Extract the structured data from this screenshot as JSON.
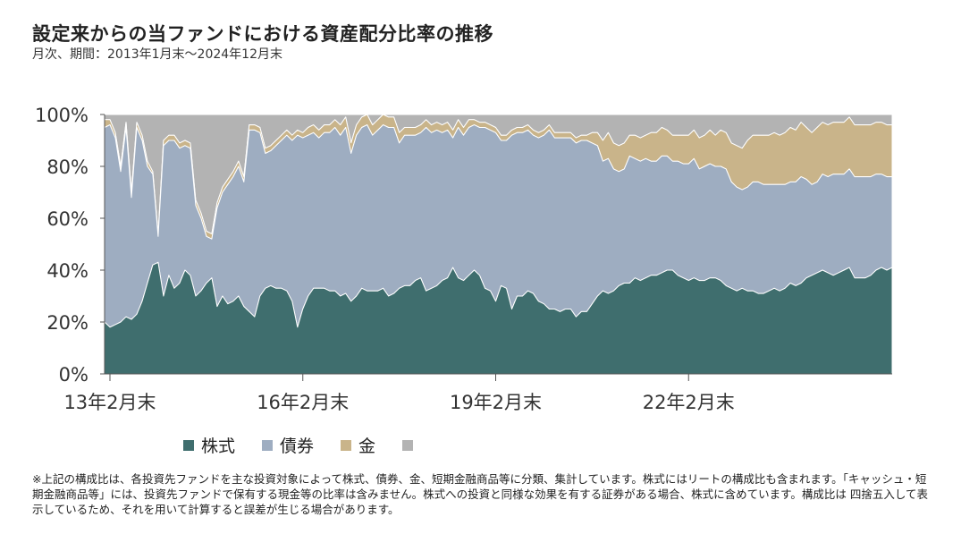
{
  "header": {
    "title": "設定来からの当ファンドにおける資産配分比率の推移",
    "subtitle": "月次、期間：2013年1月末～2024年12月末"
  },
  "footnote": "※上記の構成比は、各投資先ファンドを主な投資対象によって株式、債券、金、短期金融商品等に分類、集計しています。株式にはリートの構成比も含まれます。「キャッシュ・短期金融商品等」には、投資先ファンドで保有する現金等の比率は含みません。株式への投資と同様な効果を有する証券がある場合、株式に含めています。構成比は 四捨五入して表示しているため、それを用いて計算すると誤差が生じる場合があります。",
  "chart_data": {
    "type": "area",
    "stacked": true,
    "x_start": "2013-01",
    "x_end": "2024-12",
    "x_tick_labels": [
      "13年2月末",
      "16年2月末",
      "19年2月末",
      "22年2月末"
    ],
    "ylim": [
      0,
      100
    ],
    "y_tick_labels": [
      "0%",
      "20%",
      "40%",
      "60%",
      "80%",
      "100%"
    ],
    "colors": [
      "#3f6e6e",
      "#9eadc1",
      "#c9b48a",
      "#b3b3b3"
    ],
    "series": [
      {
        "name": "株式",
        "values": [
          20,
          18,
          19,
          20,
          22,
          21,
          23,
          28,
          35,
          42,
          43,
          30,
          38,
          33,
          35,
          40,
          38,
          30,
          32,
          35,
          37,
          26,
          30,
          27,
          28,
          30,
          26,
          24,
          22,
          30,
          33,
          34,
          33,
          33,
          32,
          28,
          18,
          25,
          30,
          33,
          33,
          33,
          32,
          32,
          30,
          31,
          28,
          30,
          33,
          32,
          32,
          32,
          33,
          30,
          31,
          33,
          34,
          34,
          36,
          37,
          32,
          33,
          34,
          36,
          37,
          41,
          37,
          36,
          38,
          40,
          38,
          33,
          32,
          28,
          34,
          33,
          25,
          30,
          30,
          32,
          31,
          28,
          27,
          25,
          25,
          24,
          25,
          25,
          22,
          24,
          24,
          27,
          30,
          32,
          31,
          32,
          34,
          35,
          35,
          37,
          36,
          37,
          38,
          38,
          39,
          40,
          40,
          38,
          37,
          36,
          37,
          36,
          36,
          37,
          37,
          36,
          34,
          33,
          32,
          33,
          32,
          32,
          31,
          31,
          32,
          33,
          32,
          33,
          35,
          34,
          35,
          37,
          38,
          39,
          40,
          39,
          38,
          39,
          40,
          41,
          37,
          37,
          37,
          38,
          40,
          41,
          40,
          41
        ]
      },
      {
        "name": "債券",
        "values": [
          75,
          78,
          72,
          58,
          73,
          47,
          72,
          62,
          45,
          35,
          10,
          58,
          52,
          57,
          52,
          48,
          49,
          35,
          28,
          18,
          15,
          38,
          40,
          46,
          48,
          50,
          48,
          70,
          72,
          63,
          52,
          52,
          55,
          57,
          60,
          62,
          74,
          66,
          62,
          60,
          58,
          60,
          61,
          63,
          62,
          64,
          57,
          62,
          62,
          64,
          60,
          62,
          63,
          65,
          64,
          56,
          58,
          58,
          56,
          56,
          63,
          60,
          60,
          57,
          57,
          50,
          58,
          56,
          57,
          56,
          57,
          62,
          62,
          65,
          56,
          57,
          67,
          63,
          63,
          62,
          61,
          63,
          65,
          69,
          66,
          67,
          66,
          66,
          67,
          66,
          66,
          62,
          58,
          50,
          52,
          47,
          44,
          44,
          49,
          46,
          46,
          46,
          44,
          44,
          45,
          44,
          42,
          44,
          44,
          45,
          46,
          43,
          44,
          44,
          43,
          44,
          45,
          41,
          40,
          38,
          40,
          42,
          43,
          42,
          41,
          40,
          41,
          40,
          39,
          40,
          41,
          38,
          35,
          35,
          37,
          37,
          39,
          38,
          37,
          38,
          39,
          39,
          39,
          38,
          37,
          36,
          36,
          35
        ]
      },
      {
        "name": "金",
        "values": [
          3,
          2,
          2,
          2,
          2,
          2,
          2,
          2,
          2,
          1,
          1,
          2,
          2,
          2,
          2,
          2,
          2,
          2,
          2,
          2,
          2,
          2,
          2,
          2,
          2,
          2,
          2,
          2,
          2,
          2,
          2,
          2,
          2,
          2,
          2,
          2,
          2,
          2,
          3,
          3,
          3,
          3,
          3,
          3,
          4,
          4,
          4,
          4,
          4,
          4,
          4,
          4,
          4,
          4,
          4,
          4,
          3,
          3,
          3,
          3,
          3,
          3,
          3,
          3,
          3,
          3,
          3,
          3,
          3,
          2,
          2,
          2,
          2,
          2,
          2,
          2,
          2,
          2,
          2,
          2,
          2,
          2,
          2,
          2,
          2,
          2,
          2,
          2,
          2,
          2,
          2,
          4,
          5,
          8,
          10,
          10,
          10,
          10,
          8,
          9,
          9,
          9,
          11,
          11,
          11,
          10,
          10,
          10,
          11,
          11,
          11,
          12,
          12,
          13,
          12,
          14,
          14,
          15,
          16,
          16,
          18,
          18,
          18,
          19,
          19,
          20,
          19,
          20,
          21,
          20,
          21,
          20,
          20,
          21,
          20,
          20,
          20,
          20,
          20,
          20,
          20,
          20,
          20,
          20,
          20,
          20,
          20,
          20
        ]
      }
    ]
  }
}
